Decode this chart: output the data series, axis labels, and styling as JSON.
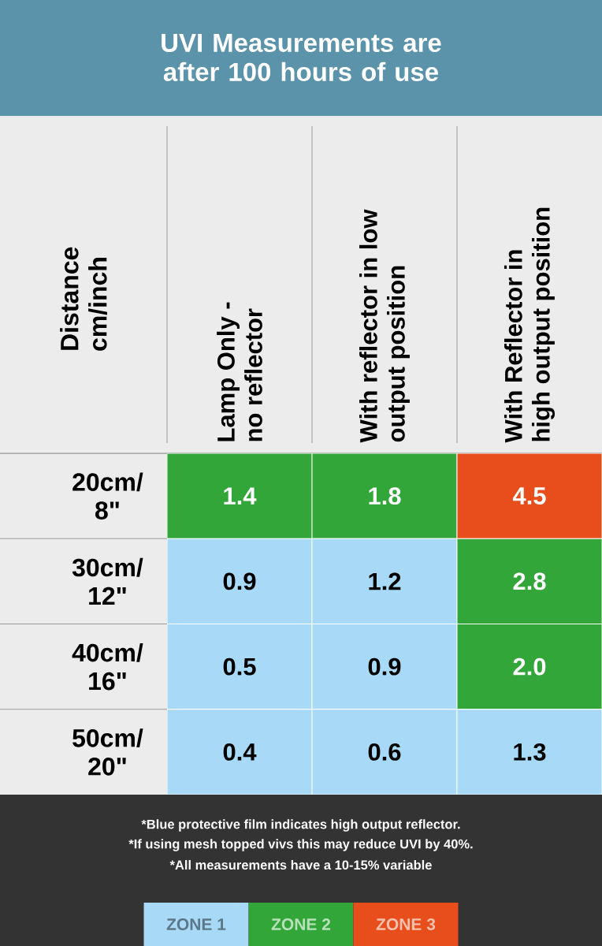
{
  "chart_data": [
    {
      "type": "heatmap",
      "title": "UVI Measurements are after 100 hours of use",
      "ylabel": "Distance cm/inch",
      "categories": [
        "Lamp Only - no reflector",
        "With reflector in low output position",
        "With Reflector in high output position"
      ],
      "y_categories": [
        "20cm/ 8\"",
        "30cm/ 12\"",
        "40cm/ 16\"",
        "50cm/ 20\""
      ],
      "cells": [
        [
          1.4,
          1.8,
          4.5
        ],
        [
          0.9,
          1.2,
          2.8
        ],
        [
          0.5,
          0.9,
          2.0
        ],
        [
          0.4,
          0.6,
          1.3
        ]
      ],
      "cell_labels": [
        [
          "1.4",
          "1.8",
          "4.5"
        ],
        [
          "0.9",
          "1.2",
          "2.8"
        ],
        [
          "0.5",
          "0.9",
          "2.0"
        ],
        [
          "0.4",
          "0.6",
          "1.3"
        ]
      ],
      "colors": [
        [
          "#33a63a",
          "#33a63a",
          "#e84e1b"
        ],
        [
          "#a8daf7",
          "#a8daf7",
          "#33a63a"
        ],
        [
          "#a8daf7",
          "#a8daf7",
          "#33a63a"
        ],
        [
          "#a8daf7",
          "#a8daf7",
          "#a8daf7"
        ]
      ],
      "data_labels": true,
      "annotations": [
        "*Blue protective film indicates high output reflector.",
        "*If using mesh topped vivs this may reduce UVI by 40%.",
        "*All measurements have a 10-15% variable"
      ]
    },
    {
      "type": "other",
      "categories": [
        "ZONE 1",
        "ZONE 2",
        "ZONE 3"
      ],
      "colors": [
        "#a8daf7",
        "#33a63a",
        "#e84e1b"
      ]
    }
  ]
}
